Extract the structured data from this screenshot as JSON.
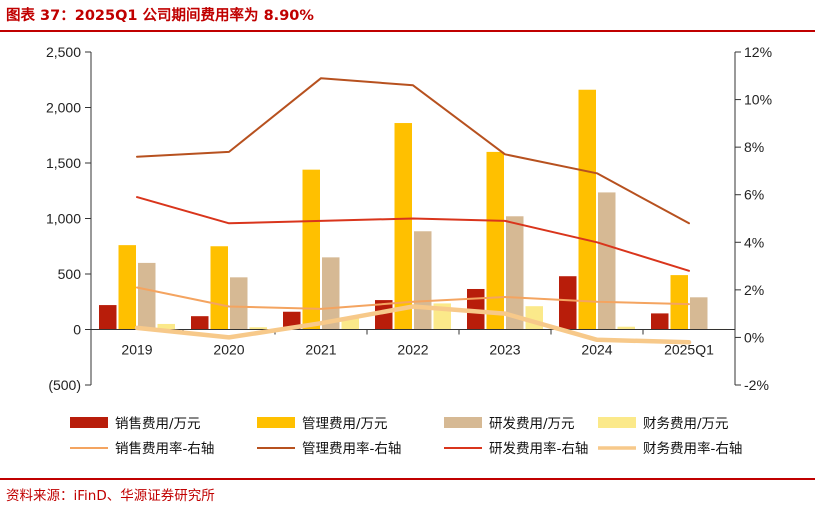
{
  "title": "图表 37：2025Q1 公司期间费用率为 8.90%",
  "source": "资料来源：iFinD、华源证券研究所",
  "chart_data": {
    "type": "bar",
    "categories": [
      "2019",
      "2020",
      "2021",
      "2022",
      "2023",
      "2024",
      "2025Q1"
    ],
    "left_axis": {
      "ylim": [
        -500,
        2500
      ],
      "ticks": [
        "(500)",
        "0",
        "500",
        "1,000",
        "1,500",
        "2,000",
        "2,500"
      ],
      "tick_values": [
        -500,
        0,
        500,
        1000,
        1500,
        2000,
        2500
      ]
    },
    "right_axis": {
      "ylim": [
        -2,
        12
      ],
      "ticks": [
        "-2%",
        "0%",
        "2%",
        "4%",
        "6%",
        "8%",
        "10%",
        "12%"
      ],
      "tick_values": [
        -2,
        0,
        2,
        4,
        6,
        8,
        10,
        12
      ]
    },
    "bar_series": [
      {
        "name": "销售费用/万元",
        "color": "#b81d0a",
        "values": [
          220,
          120,
          160,
          265,
          365,
          480,
          145
        ]
      },
      {
        "name": "管理费用/万元",
        "color": "#ffc000",
        "values": [
          760,
          750,
          1440,
          1860,
          1600,
          2160,
          490
        ]
      },
      {
        "name": "研发费用/万元",
        "color": "#d6b994",
        "values": [
          600,
          470,
          650,
          885,
          1020,
          1235,
          290
        ]
      },
      {
        "name": "财务费用/万元",
        "color": "#fbe98a",
        "values": [
          50,
          20,
          110,
          235,
          210,
          25,
          5
        ]
      }
    ],
    "line_series": [
      {
        "name": "销售费用率-右轴",
        "color": "#f4a460",
        "width": 2,
        "values": [
          2.1,
          1.3,
          1.2,
          1.5,
          1.7,
          1.5,
          1.4
        ]
      },
      {
        "name": "管理费用率-右轴",
        "color": "#b7511f",
        "width": 2,
        "values": [
          7.6,
          7.8,
          10.9,
          10.6,
          7.7,
          6.9,
          4.8
        ]
      },
      {
        "name": "研发费用率-右轴",
        "color": "#d9351c",
        "width": 2,
        "values": [
          5.9,
          4.8,
          4.9,
          5.0,
          4.9,
          4.0,
          2.8
        ]
      },
      {
        "name": "财务费用率-右轴",
        "color": "#f7c98a",
        "width": 4.5,
        "values": [
          0.4,
          0.0,
          0.6,
          1.3,
          1.0,
          -0.1,
          -0.2
        ]
      }
    ]
  }
}
